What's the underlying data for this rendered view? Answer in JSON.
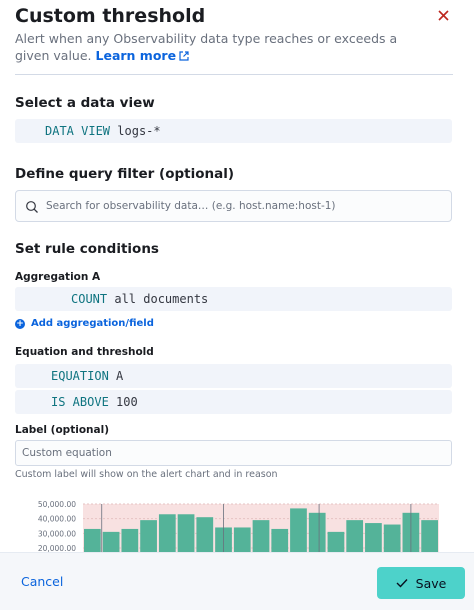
{
  "flyout": {
    "title": "Custom threshold",
    "subtitle": "Alert when any Observability data type reaches or exceeds a given value.",
    "learn_more": "Learn more"
  },
  "data_view": {
    "heading": "Select a data view",
    "keyword": "DATA VIEW",
    "value": "logs-*"
  },
  "query_filter": {
    "heading": "Define query filter (optional)",
    "placeholder": "Search for observability data… (e.g. host.name:host-1)"
  },
  "rule_conditions": {
    "heading": "Set rule conditions",
    "aggregation_label": "Aggregation A",
    "aggregation_keyword": "COUNT",
    "aggregation_value": "all documents",
    "add_aggregation": "Add aggregation/field",
    "equation_label": "Equation and threshold",
    "equation_keyword": "EQUATION",
    "equation_value": "A",
    "threshold_keyword": "IS ABOVE",
    "threshold_value": "100",
    "label_heading": "Label (optional)",
    "label_placeholder": "Custom equation",
    "label_help": "Custom label will show on the alert chart and in reason"
  },
  "chart_data": {
    "type": "bar",
    "y_tick_labels": [
      "50,000.00",
      "40,000.00",
      "30,000.00",
      "20,000.00"
    ],
    "ylim": [
      20000,
      55000
    ],
    "values": [
      33000,
      31000,
      33000,
      39000,
      43000,
      43000,
      41000,
      34000,
      34000,
      39000,
      33000,
      47000,
      44000,
      31000,
      39000,
      37000,
      36000,
      44000,
      39000
    ],
    "threshold": 100,
    "colors": {
      "bar": "#54b399",
      "threshold_area": "#f8e1e1",
      "marker": "#69707d"
    }
  },
  "footer": {
    "cancel": "Cancel",
    "save": "Save"
  }
}
